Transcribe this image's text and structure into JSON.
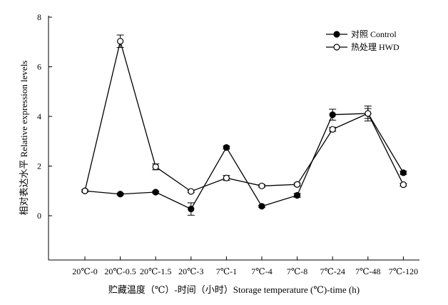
{
  "chart_data": {
    "type": "line",
    "xlabel": "贮藏温度（℃）-时间（小时）Storage temperature (℃)-time (h)",
    "ylabel": "相对表达水平 Relative expression levels",
    "categories": [
      "20℃-0",
      "20℃-0.5",
      "20℃-1.5",
      "20℃-3",
      "7℃-1",
      "7℃-4",
      "7℃-8",
      "7℃-24",
      "7℃-48",
      "7℃-120"
    ],
    "category_tick_labels": [
      "20℃-0",
      "20℃-0.5",
      "20℃-1.5",
      "20℃-3",
      "7℃-1",
      "7℃-4",
      "7℃-8",
      "7℃-24",
      "7℃-48",
      "7℃-120"
    ],
    "ylim": [
      -1.8,
      8
    ],
    "yticks": [
      "0",
      "2",
      "4",
      "6",
      "8"
    ],
    "ytick_values": [
      0,
      2,
      4,
      6,
      8
    ],
    "grid": false,
    "legend_position": "top-right",
    "series": [
      {
        "name": "对照 Control",
        "marker": "filled-circle",
        "color": "#000000",
        "values": [
          1.0,
          0.87,
          0.95,
          0.27,
          2.75,
          0.38,
          0.82,
          4.07,
          4.12,
          1.73
        ],
        "errors": [
          0.04,
          0.04,
          0.04,
          0.25,
          0.06,
          0.04,
          0.08,
          0.22,
          0.2,
          0.07
        ]
      },
      {
        "name": "热处理 HWD",
        "marker": "open-circle",
        "color": "#000000",
        "values": [
          1.0,
          7.03,
          1.97,
          0.98,
          1.52,
          1.2,
          1.26,
          3.48,
          4.12,
          1.25
        ],
        "errors": [
          0.04,
          0.25,
          0.12,
          0.04,
          0.1,
          0.05,
          0.06,
          0.08,
          0.3,
          0.05
        ]
      }
    ]
  }
}
